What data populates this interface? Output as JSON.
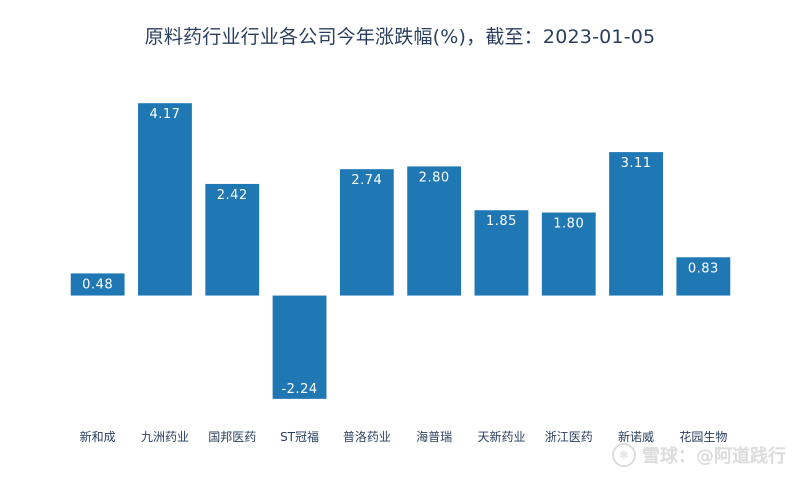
{
  "chart_data": {
    "type": "bar",
    "title": "原料药行业行业各公司今年涨跌幅(%)，截至：2023-01-05",
    "categories": [
      "新和成",
      "九洲药业",
      "国邦医药",
      "ST冠福",
      "普洛药业",
      "海普瑞",
      "天新药业",
      "浙江医药",
      "新诺威",
      "花园生物"
    ],
    "values": [
      0.48,
      4.17,
      2.42,
      -2.24,
      2.74,
      2.8,
      1.85,
      1.8,
      3.11,
      0.83
    ],
    "value_labels": [
      "0.48",
      "4.17",
      "2.42",
      "-2.24",
      "2.74",
      "2.80",
      "1.85",
      "1.80",
      "3.11",
      "0.83"
    ],
    "xlabel": "",
    "ylabel": "",
    "ylim": [
      -2.85,
      4.5
    ],
    "grid": false,
    "bar_color": "#1f77b4",
    "label_color": "#ffffff",
    "tick_color": "#2a3f5f"
  },
  "watermark": {
    "logo": "❄",
    "text": "雪球：@阿道践行"
  }
}
